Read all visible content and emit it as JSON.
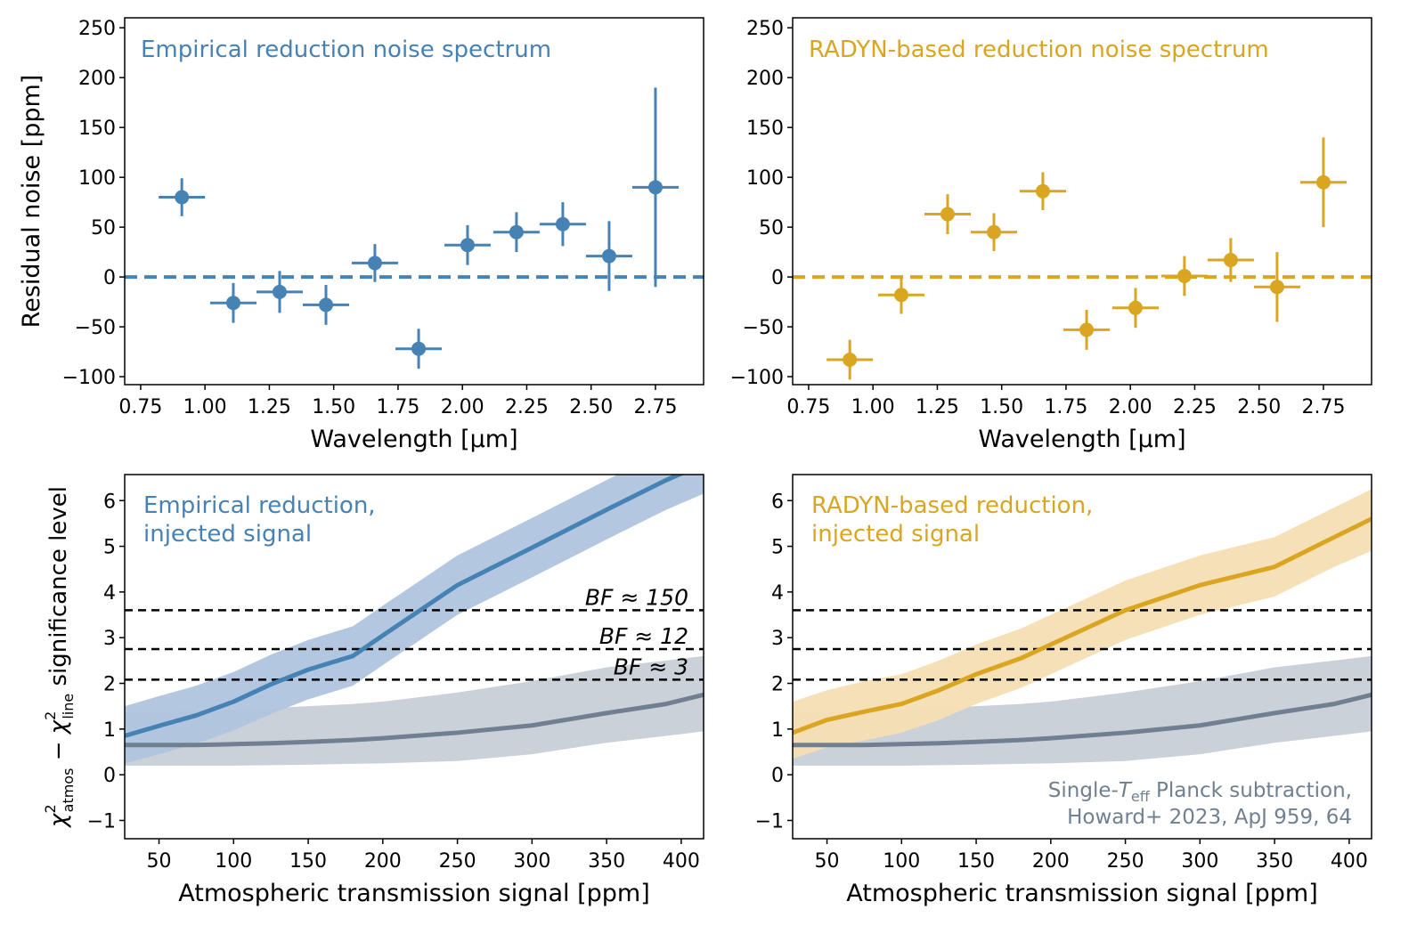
{
  "colors": {
    "empirical": "#4682b4",
    "radyn": "#daa520",
    "planck": "#708090",
    "empirical_band": "#b0c4de",
    "radyn_band": "#f5deb3",
    "planck_band": "#c5ccd5",
    "threshold": "#000000"
  },
  "chart_data": [
    {
      "type": "scatter",
      "panel": "top-left",
      "annotation": "Empirical reduction noise spectrum",
      "xlabel": "Wavelength [μm]",
      "ylabel": "Residual noise [ppm]",
      "xlim": [
        0.688,
        2.937
      ],
      "ylim": [
        -108,
        260
      ],
      "xticks": [
        0.75,
        1.0,
        1.25,
        1.5,
        1.75,
        2.0,
        2.25,
        2.5,
        2.75
      ],
      "xtick_labels": [
        "0.75",
        "1.00",
        "1.25",
        "1.50",
        "1.75",
        "2.00",
        "2.25",
        "2.50",
        "2.75"
      ],
      "yticks": [
        -100,
        -50,
        0,
        50,
        100,
        150,
        200,
        250
      ],
      "ytick_labels": [
        "−100",
        "−50",
        "0",
        "50",
        "100",
        "150",
        "200",
        "250"
      ],
      "reference_line": 0,
      "points": [
        {
          "x": 0.91,
          "y": 80,
          "xerr": 0.09,
          "yerr": 19
        },
        {
          "x": 1.11,
          "y": -26,
          "xerr": 0.09,
          "yerr": 20
        },
        {
          "x": 1.29,
          "y": -15,
          "xerr": 0.09,
          "yerr": 21
        },
        {
          "x": 1.47,
          "y": -28,
          "xerr": 0.09,
          "yerr": 20
        },
        {
          "x": 1.66,
          "y": 14,
          "xerr": 0.09,
          "yerr": 19
        },
        {
          "x": 1.83,
          "y": -72,
          "xerr": 0.09,
          "yerr": 20
        },
        {
          "x": 2.02,
          "y": 32,
          "xerr": 0.09,
          "yerr": 20
        },
        {
          "x": 2.21,
          "y": 45,
          "xerr": 0.09,
          "yerr": 20
        },
        {
          "x": 2.39,
          "y": 53,
          "xerr": 0.09,
          "yerr": 22
        },
        {
          "x": 2.57,
          "y": 21,
          "xerr": 0.09,
          "yerr": 35
        },
        {
          "x": 2.75,
          "y": 90,
          "xerr": 0.09,
          "yerr": 100
        }
      ]
    },
    {
      "type": "scatter",
      "panel": "top-right",
      "annotation": "RADYN-based reduction noise spectrum",
      "xlabel": "Wavelength [μm]",
      "xlim": [
        0.688,
        2.937
      ],
      "ylim": [
        -108,
        260
      ],
      "xticks": [
        0.75,
        1.0,
        1.25,
        1.5,
        1.75,
        2.0,
        2.25,
        2.5,
        2.75
      ],
      "xtick_labels": [
        "0.75",
        "1.00",
        "1.25",
        "1.50",
        "1.75",
        "2.00",
        "2.25",
        "2.50",
        "2.75"
      ],
      "yticks": [
        -100,
        -50,
        0,
        50,
        100,
        150,
        200,
        250
      ],
      "ytick_labels": [
        "−100",
        "−50",
        "0",
        "50",
        "100",
        "150",
        "200",
        "250"
      ],
      "reference_line": 0,
      "points": [
        {
          "x": 0.91,
          "y": -83,
          "xerr": 0.09,
          "yerr": 20
        },
        {
          "x": 1.11,
          "y": -18,
          "xerr": 0.09,
          "yerr": 19
        },
        {
          "x": 1.29,
          "y": 63,
          "xerr": 0.09,
          "yerr": 20
        },
        {
          "x": 1.47,
          "y": 45,
          "xerr": 0.09,
          "yerr": 19
        },
        {
          "x": 1.66,
          "y": 86,
          "xerr": 0.09,
          "yerr": 19
        },
        {
          "x": 1.83,
          "y": -53,
          "xerr": 0.09,
          "yerr": 20
        },
        {
          "x": 2.02,
          "y": -31,
          "xerr": 0.09,
          "yerr": 20
        },
        {
          "x": 2.21,
          "y": 1,
          "xerr": 0.09,
          "yerr": 20
        },
        {
          "x": 2.39,
          "y": 17,
          "xerr": 0.09,
          "yerr": 22
        },
        {
          "x": 2.57,
          "y": -10,
          "xerr": 0.09,
          "yerr": 35
        },
        {
          "x": 2.75,
          "y": 95,
          "xerr": 0.09,
          "yerr": 45
        }
      ]
    },
    {
      "type": "line",
      "panel": "bottom-left",
      "annotation": [
        "Empirical reduction,",
        "injected signal"
      ],
      "xlabel": "Atmospheric transmission signal [ppm]",
      "ylabel": {
        "chi": "χ",
        "sup": "2",
        "sub1": "atmos",
        "minus": " − ",
        "sub2": "line",
        "rest": " significance level"
      },
      "xlim": [
        27,
        415
      ],
      "ylim": [
        -1.4,
        6.57
      ],
      "xticks": [
        50,
        100,
        150,
        200,
        250,
        300,
        350,
        400
      ],
      "xtick_labels": [
        "50",
        "100",
        "150",
        "200",
        "250",
        "300",
        "350",
        "400"
      ],
      "yticks": [
        -1,
        0,
        1,
        2,
        3,
        4,
        5,
        6
      ],
      "ytick_labels": [
        "−1",
        "0",
        "1",
        "2",
        "3",
        "4",
        "5",
        "6"
      ],
      "thresholds": [
        {
          "y": 3.6,
          "label": "BF ≈ 150"
        },
        {
          "y": 2.75,
          "label": "BF ≈ 12"
        },
        {
          "y": 2.08,
          "label": "BF ≈ 3"
        }
      ],
      "x": [
        27,
        50,
        75,
        100,
        125,
        150,
        180,
        200,
        250,
        300,
        350,
        390,
        415
      ],
      "series": [
        {
          "role": "planck",
          "y": [
            0.65,
            0.65,
            0.65,
            0.67,
            0.69,
            0.72,
            0.76,
            0.8,
            0.92,
            1.08,
            1.35,
            1.55,
            1.75
          ],
          "lower": [
            0.2,
            0.2,
            0.2,
            0.2,
            0.21,
            0.22,
            0.24,
            0.25,
            0.3,
            0.45,
            0.7,
            0.85,
            0.95
          ],
          "upper": [
            1.35,
            1.38,
            1.4,
            1.43,
            1.46,
            1.5,
            1.55,
            1.6,
            1.8,
            2.05,
            2.35,
            2.5,
            2.6
          ]
        },
        {
          "role": "empirical",
          "y": [
            0.85,
            1.07,
            1.3,
            1.6,
            1.98,
            2.3,
            2.6,
            3.05,
            4.15,
            4.97,
            5.8,
            6.45,
            6.8
          ],
          "lower": [
            0.25,
            0.45,
            0.68,
            0.97,
            1.33,
            1.65,
            1.95,
            2.4,
            3.5,
            4.32,
            5.15,
            5.8,
            6.15
          ],
          "upper": [
            1.5,
            1.72,
            1.95,
            2.25,
            2.63,
            2.95,
            3.25,
            3.7,
            4.8,
            5.62,
            6.45,
            7.1,
            7.45
          ]
        }
      ]
    },
    {
      "type": "line",
      "panel": "bottom-right",
      "annotation": [
        "RADYN-based reduction,",
        "injected signal"
      ],
      "annotation2": {
        "prefix": "Single-",
        "sym": "T",
        "sub": "eff",
        "rest": " Planck subtraction,",
        "line2": "Howard+ 2023, ApJ 959, 64"
      },
      "xlabel": "Atmospheric transmission signal [ppm]",
      "xlim": [
        27,
        415
      ],
      "ylim": [
        -1.4,
        6.57
      ],
      "xticks": [
        50,
        100,
        150,
        200,
        250,
        300,
        350,
        400
      ],
      "xtick_labels": [
        "50",
        "100",
        "150",
        "200",
        "250",
        "300",
        "350",
        "400"
      ],
      "yticks": [
        -1,
        0,
        1,
        2,
        3,
        4,
        5,
        6
      ],
      "ytick_labels": [
        "−1",
        "0",
        "1",
        "2",
        "3",
        "4",
        "5",
        "6"
      ],
      "thresholds": [
        {
          "y": 3.6
        },
        {
          "y": 2.75
        },
        {
          "y": 2.08
        }
      ],
      "x": [
        27,
        50,
        75,
        100,
        125,
        150,
        180,
        200,
        250,
        300,
        350,
        390,
        415
      ],
      "series": [
        {
          "role": "planck",
          "y": [
            0.65,
            0.65,
            0.65,
            0.67,
            0.69,
            0.72,
            0.76,
            0.8,
            0.92,
            1.08,
            1.35,
            1.55,
            1.75
          ],
          "lower": [
            0.2,
            0.2,
            0.2,
            0.2,
            0.21,
            0.22,
            0.24,
            0.25,
            0.3,
            0.45,
            0.7,
            0.85,
            0.95
          ],
          "upper": [
            1.35,
            1.38,
            1.4,
            1.43,
            1.46,
            1.5,
            1.55,
            1.6,
            1.8,
            2.05,
            2.35,
            2.5,
            2.6
          ]
        },
        {
          "role": "radyn",
          "y": [
            0.92,
            1.2,
            1.38,
            1.55,
            1.85,
            2.2,
            2.55,
            2.85,
            3.6,
            4.15,
            4.55,
            5.2,
            5.6
          ],
          "lower": [
            0.35,
            0.6,
            0.75,
            0.92,
            1.2,
            1.55,
            1.9,
            2.2,
            2.95,
            3.5,
            3.9,
            4.55,
            4.9
          ],
          "upper": [
            1.6,
            1.85,
            2.05,
            2.2,
            2.5,
            2.85,
            3.2,
            3.5,
            4.25,
            4.8,
            5.2,
            5.85,
            6.25
          ]
        }
      ]
    }
  ]
}
